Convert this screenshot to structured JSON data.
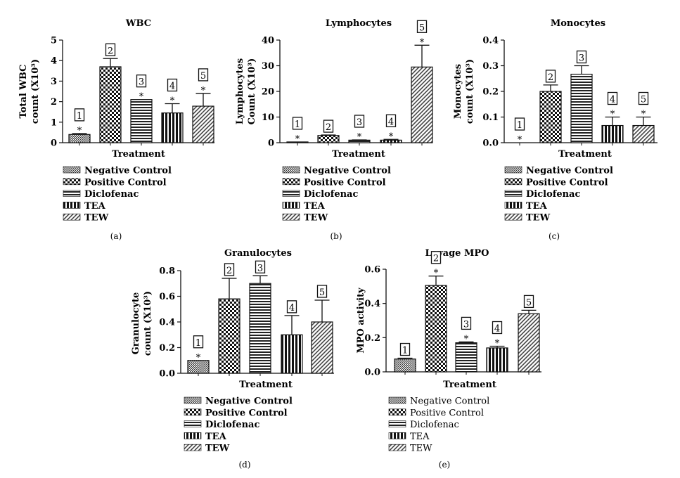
{
  "chart_data": [
    {
      "type": "bar",
      "panel": "(a)",
      "title": "WBC",
      "ylabel": [
        "Total WBC",
        "count (X10³)"
      ],
      "xlabel": "Treatment",
      "ylim": [
        0,
        5
      ],
      "yticks": [
        "0",
        "1",
        "2",
        "3",
        "4",
        "5"
      ],
      "ytick_values": [
        0,
        1,
        2,
        3,
        4,
        5
      ],
      "categories": [
        "Negative Control",
        "Positive Control",
        "Diclofenac",
        "TEA",
        "TEW"
      ],
      "bar_labels": [
        "1",
        "2",
        "3",
        "4",
        "5"
      ],
      "values": [
        0.4,
        3.7,
        2.1,
        1.45,
        1.78
      ],
      "error_upper": [
        0.45,
        4.1,
        2.1,
        1.9,
        2.4
      ],
      "significant": [
        true,
        false,
        true,
        true,
        true
      ],
      "legend_bold": true
    },
    {
      "type": "bar",
      "panel": "(b)",
      "title": "Lymphocytes",
      "ylabel": [
        "Lymphocytes",
        "Count (X10³)"
      ],
      "xlabel": "Treatment",
      "ylim": [
        0,
        40
      ],
      "yticks": [
        "0",
        "10",
        "20",
        "30",
        "40"
      ],
      "ytick_values": [
        0,
        10,
        20,
        30,
        40
      ],
      "categories": [
        "Negative Control",
        "Positive Control",
        "Diclofenac",
        "TEA",
        "TEW"
      ],
      "bar_labels": [
        "1",
        "2",
        "3",
        "4",
        "5"
      ],
      "values": [
        0.3,
        2.8,
        1.0,
        1.0,
        29.5
      ],
      "error_upper": [
        0.3,
        3.0,
        1.1,
        1.3,
        38
      ],
      "significant": [
        true,
        false,
        true,
        true,
        true
      ],
      "legend_bold": true
    },
    {
      "type": "bar",
      "panel": "(c)",
      "title": "Monocytes",
      "ylabel": [
        "Monocytes",
        "count (X10³)"
      ],
      "xlabel": "Treatment",
      "ylim": [
        0,
        0.4
      ],
      "yticks": [
        "0.0",
        "0.1",
        "0.2",
        "0.3",
        "0.4"
      ],
      "ytick_values": [
        0,
        0.1,
        0.2,
        0.3,
        0.4
      ],
      "categories": [
        "Negative Control",
        "Positive Control",
        "Diclofenac",
        "TEA",
        "TEW"
      ],
      "bar_labels": [
        "1",
        "2",
        "3",
        "4",
        "5"
      ],
      "values": [
        0,
        0.2,
        0.267,
        0.067,
        0.067
      ],
      "error_upper": [
        0,
        0.225,
        0.3,
        0.1,
        0.1
      ],
      "significant": [
        true,
        false,
        false,
        true,
        true
      ],
      "legend_bold": true
    },
    {
      "type": "bar",
      "panel": "(d)",
      "title": "Granulocytes",
      "ylabel": [
        "Granulocyte",
        "count (X10³)"
      ],
      "xlabel": "Treatment",
      "ylim": [
        0,
        0.8
      ],
      "yticks": [
        "0.0",
        "0.2",
        "0.4",
        "0.6",
        "0.8"
      ],
      "ytick_values": [
        0,
        0.2,
        0.4,
        0.6,
        0.8
      ],
      "categories": [
        "Negative Control",
        "Positive Control",
        "Diclofenac",
        "TEA",
        "TEW"
      ],
      "bar_labels": [
        "1",
        "2",
        "3",
        "4",
        "5"
      ],
      "values": [
        0.1,
        0.58,
        0.7,
        0.3,
        0.4
      ],
      "error_upper": [
        0.1,
        0.74,
        0.76,
        0.45,
        0.57
      ],
      "significant": [
        true,
        false,
        false,
        false,
        false
      ],
      "legend_bold": true
    },
    {
      "type": "bar",
      "panel": "(e)",
      "title": "Lavage MPO",
      "ylabel": [
        "MPO activity"
      ],
      "xlabel": "Treatment",
      "ylim": [
        0,
        0.6
      ],
      "yticks": [
        "0.0",
        "0.2",
        "0.4",
        "0.6"
      ],
      "ytick_values": [
        0,
        0.2,
        0.4,
        0.6
      ],
      "categories": [
        "Negative Control",
        "Positive Control",
        "Diclofenac",
        "TEA",
        "TEW"
      ],
      "bar_labels": [
        "1",
        "2",
        "3",
        "4",
        "5"
      ],
      "values": [
        0.075,
        0.505,
        0.17,
        0.14,
        0.34
      ],
      "error_upper": [
        0.08,
        0.56,
        0.175,
        0.15,
        0.36
      ],
      "significant": [
        false,
        true,
        true,
        true,
        false
      ],
      "legend_bold": false
    }
  ],
  "significance_marker": "*",
  "colors": {
    "ink": "#111111",
    "hatch_grey": "#555555",
    "background": "#ffffff"
  }
}
